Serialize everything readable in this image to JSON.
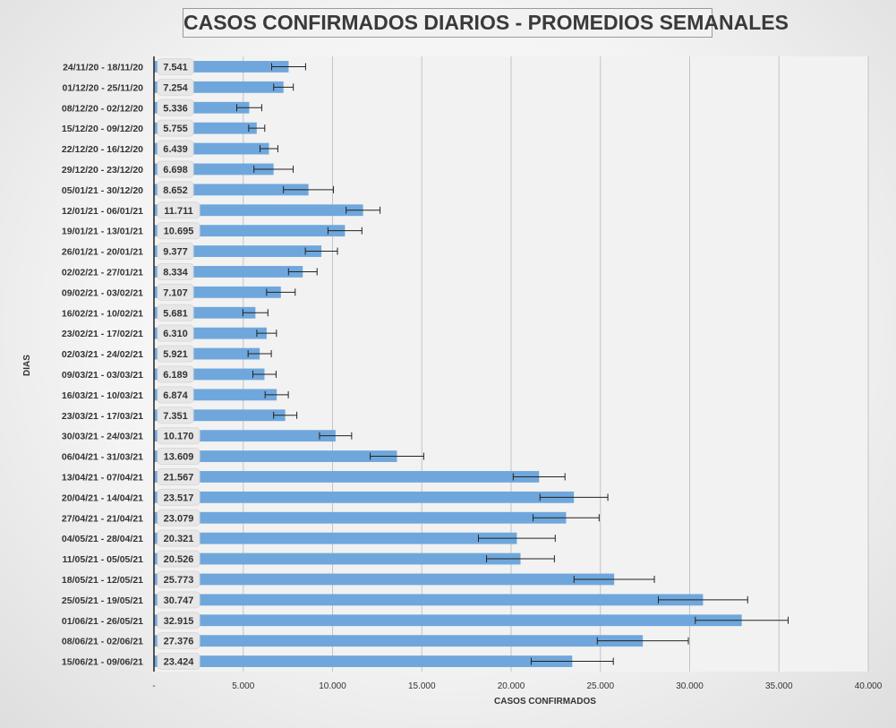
{
  "chart_data": {
    "type": "bar",
    "orientation": "horizontal",
    "title": "CASOS CONFIRMADOS DIARIOS - PROMEDIOS SEMANALES",
    "xlabel": "CASOS CONFIRMADOS",
    "ylabel": "DIAS",
    "xlim": [
      0,
      40000
    ],
    "x_ticks": [
      "-",
      "5.000",
      "10.000",
      "15.000",
      "20.000",
      "25.000",
      "30.000",
      "35.000",
      "40.000"
    ],
    "grid": true,
    "error_bars": true,
    "bar_color": "#6fa7dc",
    "categories": [
      "24/11/20 - 18/11/20",
      "01/12/20 - 25/11/20",
      "08/12/20 - 02/12/20",
      "15/12/20 - 09/12/20",
      "22/12/20 - 16/12/20",
      "29/12/20 - 23/12/20",
      "05/01/21 - 30/12/20",
      "12/01/21 - 06/01/21",
      "19/01/21 - 13/01/21",
      "26/01/21 - 20/01/21",
      "02/02/21 - 27/01/21",
      "09/02/21 - 03/02/21",
      "16/02/21 - 10/02/21",
      "23/02/21 - 17/02/21",
      "02/03/21 - 24/02/21",
      "09/03/21 - 03/03/21",
      "16/03/21 - 10/03/21",
      "23/03/21 - 17/03/21",
      "30/03/21 - 24/03/21",
      "06/04/21 - 31/03/21",
      "13/04/21 - 07/04/21",
      "20/04/21 - 14/04/21",
      "27/04/21 - 21/04/21",
      "04/05/21 - 28/04/21",
      "11/05/21 - 05/05/21",
      "18/05/21 - 12/05/21",
      "25/05/21 - 19/05/21",
      "01/06/21 - 26/05/21",
      "08/06/21 - 02/06/21",
      "15/06/21 - 09/06/21"
    ],
    "values": [
      7541,
      7254,
      5336,
      5755,
      6439,
      6698,
      8652,
      11711,
      10695,
      9377,
      8334,
      7107,
      5681,
      6310,
      5921,
      6189,
      6874,
      7351,
      10170,
      13609,
      21567,
      23517,
      23079,
      20321,
      20526,
      25773,
      30747,
      32915,
      27376,
      23424
    ],
    "value_labels": [
      "7.541",
      "7.254",
      "5.336",
      "5.755",
      "6.439",
      "6.698",
      "8.652",
      "11.711",
      "10.695",
      "9.377",
      "8.334",
      "7.107",
      "5.681",
      "6.310",
      "5.921",
      "6.189",
      "6.874",
      "7.351",
      "10.170",
      "13.609",
      "21.567",
      "23.517",
      "23.079",
      "20.321",
      "20.526",
      "25.773",
      "30.747",
      "32.915",
      "27.376",
      "23.424"
    ],
    "errors": [
      950,
      550,
      700,
      450,
      500,
      1100,
      1400,
      950,
      950,
      900,
      800,
      800,
      700,
      550,
      650,
      650,
      650,
      650,
      900,
      1500,
      1450,
      1900,
      1850,
      2150,
      1900,
      2250,
      2500,
      2600,
      2550,
      2300
    ]
  }
}
